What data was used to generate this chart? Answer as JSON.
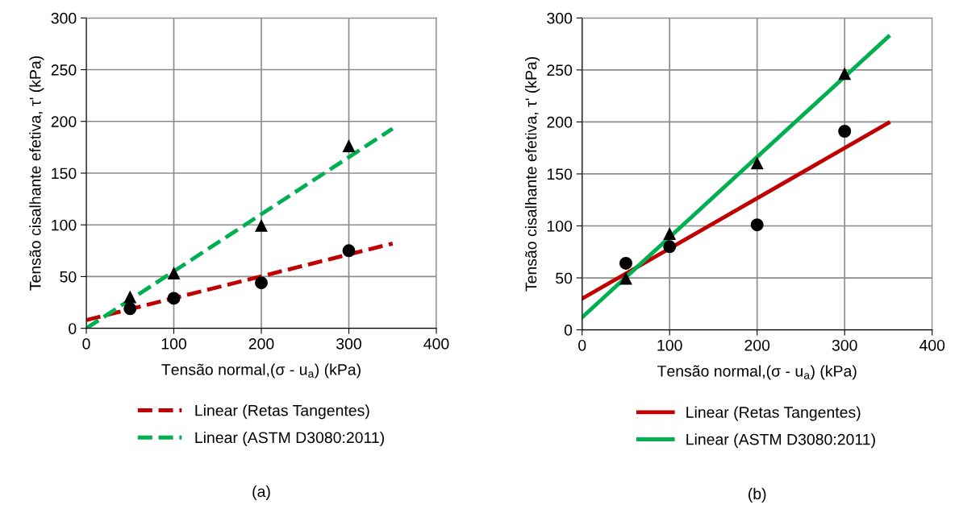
{
  "chart_data": [
    {
      "type": "scatter",
      "xlabel": "Tensão normal,(σ - u$_{a}$) (kPa)",
      "ylabel": "Tensão cisalhante efetiva, τ' (kPa)",
      "xlim": [
        0,
        400
      ],
      "xticks": [
        0,
        100,
        200,
        300,
        400
      ],
      "ylim": [
        0,
        300
      ],
      "yticks": [
        0,
        50,
        100,
        150,
        200,
        250,
        300
      ],
      "grid": true,
      "legend": "bottom",
      "annotations": [
        "(a)"
      ],
      "series": [
        {
          "x": [
            50,
            100,
            200,
            300
          ],
          "values": [
            30,
            53,
            99,
            176
          ],
          "color": "#000000",
          "marker": "triangle"
        },
        {
          "x": [
            50,
            100,
            200,
            300
          ],
          "values": [
            19,
            29,
            44,
            75
          ],
          "color": "#000000",
          "marker": "circle"
        },
        {
          "type": "line",
          "name": "Linear (Retas Tangentes)",
          "x": [
            0,
            350
          ],
          "values": [
            8,
            82
          ],
          "color": "#c00000",
          "line_style": "dashed",
          "marker": "none"
        },
        {
          "type": "line",
          "name": "Linear (ASTM D3080:2011)",
          "x": [
            0,
            350
          ],
          "values": [
            0,
            193
          ],
          "color": "#00b050",
          "line_style": "dashed",
          "marker": "none"
        }
      ]
    },
    {
      "type": "scatter",
      "xlabel": "Tensão normal,(σ - u$_{a}$) (kPa)",
      "ylabel": "Tensão cisalhante efetiva, τ' (kPa)",
      "xlim": [
        0,
        400
      ],
      "xticks": [
        0,
        100,
        200,
        300,
        400
      ],
      "ylim": [
        0,
        300
      ],
      "yticks": [
        0,
        50,
        100,
        150,
        200,
        250,
        300
      ],
      "grid": true,
      "legend": "bottom",
      "annotations": [
        "(b)"
      ],
      "series": [
        {
          "x": [
            50,
            100,
            200,
            300
          ],
          "values": [
            49,
            92,
            160,
            246
          ],
          "color": "#000000",
          "marker": "triangle"
        },
        {
          "x": [
            50,
            100,
            200,
            300
          ],
          "values": [
            64,
            80,
            101,
            191
          ],
          "color": "#000000",
          "marker": "circle"
        },
        {
          "type": "line",
          "name": "Linear (Retas Tangentes)",
          "x": [
            0,
            350
          ],
          "values": [
            30,
            199
          ],
          "color": "#c00000",
          "line_style": "solid",
          "marker": "none"
        },
        {
          "type": "line",
          "name": "Linear (ASTM D3080:2011)",
          "x": [
            0,
            350
          ],
          "values": [
            12,
            282
          ],
          "color": "#00b050",
          "line_style": "solid",
          "marker": "none"
        }
      ]
    }
  ]
}
